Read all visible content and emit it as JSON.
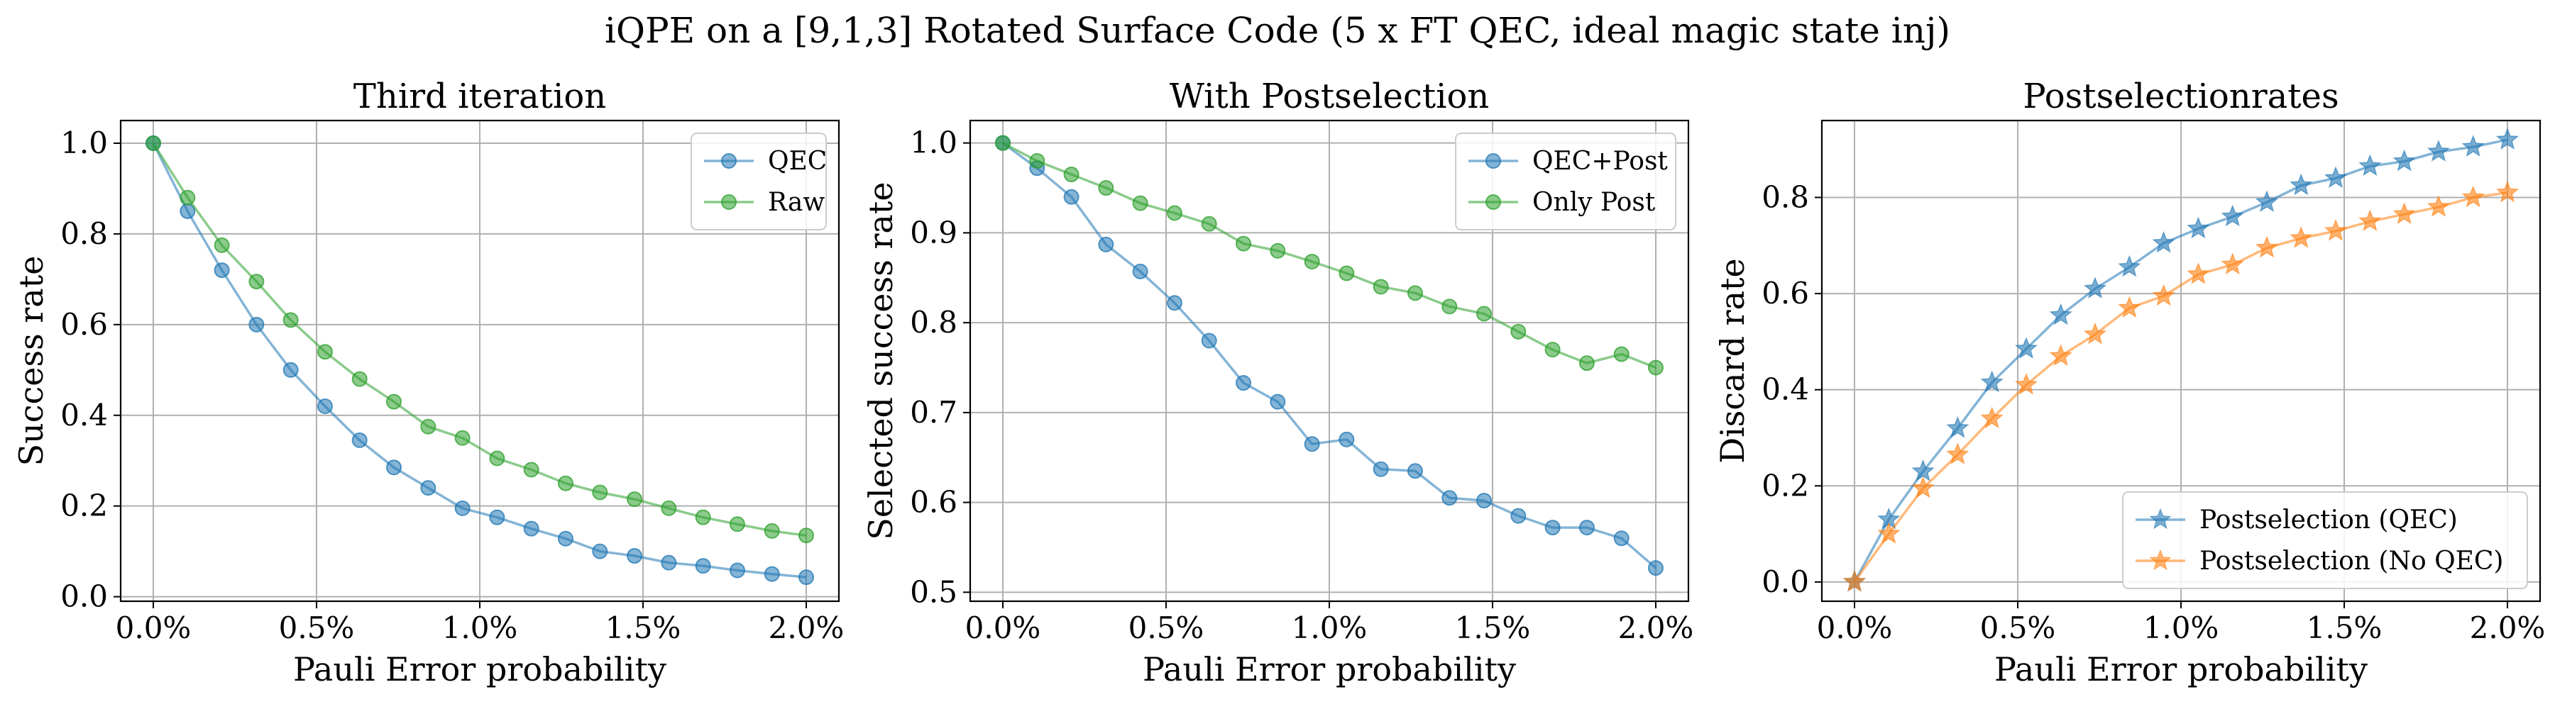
{
  "figure_title": "iQPE on a [9,1,3] Rotated Surface Code (5 x FT QEC, ideal magic state inj)",
  "chart_data": [
    {
      "type": "line",
      "title": "Third iteration",
      "xlabel": "Pauli Error probability",
      "ylabel": "Success rate",
      "xlim": [
        -0.001,
        0.021
      ],
      "ylim": [
        -0.01,
        1.05
      ],
      "xticks": [
        0,
        0.005,
        0.01,
        0.015,
        0.02
      ],
      "xtick_labels": [
        "0.0%",
        "0.5%",
        "1.0%",
        "1.5%",
        "2.0%"
      ],
      "yticks": [
        0,
        0.2,
        0.4,
        0.6,
        0.8,
        1.0
      ],
      "ytick_labels": [
        "0.0",
        "0.2",
        "0.4",
        "0.6",
        "0.8",
        "1.0"
      ],
      "grid": true,
      "legend": "top-right",
      "marker": "circle",
      "x": [
        0,
        0.00105,
        0.0021,
        0.00316,
        0.00421,
        0.00526,
        0.00632,
        0.00737,
        0.00842,
        0.00947,
        0.01053,
        0.01158,
        0.01263,
        0.01368,
        0.01474,
        0.01579,
        0.01684,
        0.01789,
        0.01895,
        0.02
      ],
      "series": [
        {
          "name": "QEC",
          "color": "#1f77b4",
          "values": [
            1.0,
            0.85,
            0.72,
            0.6,
            0.5,
            0.42,
            0.345,
            0.285,
            0.24,
            0.195,
            0.175,
            0.15,
            0.128,
            0.1,
            0.09,
            0.075,
            0.068,
            0.058,
            0.05,
            0.043
          ]
        },
        {
          "name": "Raw",
          "color": "#2ca02c",
          "values": [
            1.0,
            0.88,
            0.775,
            0.695,
            0.61,
            0.54,
            0.48,
            0.43,
            0.375,
            0.35,
            0.305,
            0.28,
            0.25,
            0.23,
            0.215,
            0.195,
            0.175,
            0.16,
            0.145,
            0.135
          ]
        }
      ]
    },
    {
      "type": "line",
      "title": "With Postselection",
      "xlabel": "Pauli Error probability",
      "ylabel": "Selected success rate",
      "xlim": [
        -0.001,
        0.021
      ],
      "ylim": [
        0.49,
        1.025
      ],
      "xticks": [
        0,
        0.005,
        0.01,
        0.015,
        0.02
      ],
      "xtick_labels": [
        "0.0%",
        "0.5%",
        "1.0%",
        "1.5%",
        "2.0%"
      ],
      "yticks": [
        0.5,
        0.6,
        0.7,
        0.8,
        0.9,
        1.0
      ],
      "ytick_labels": [
        "0.5",
        "0.6",
        "0.7",
        "0.8",
        "0.9",
        "1.0"
      ],
      "grid": true,
      "legend": "top-right",
      "marker": "circle",
      "x": [
        0,
        0.00105,
        0.0021,
        0.00316,
        0.00421,
        0.00526,
        0.00632,
        0.00737,
        0.00842,
        0.00947,
        0.01053,
        0.01158,
        0.01263,
        0.01368,
        0.01474,
        0.01579,
        0.01684,
        0.01789,
        0.01895,
        0.02
      ],
      "series": [
        {
          "name": "QEC+Post",
          "color": "#1f77b4",
          "values": [
            1.0,
            0.972,
            0.94,
            0.887,
            0.857,
            0.822,
            0.78,
            0.733,
            0.712,
            0.665,
            0.67,
            0.637,
            0.635,
            0.605,
            0.602,
            0.585,
            0.572,
            0.572,
            0.56,
            0.527
          ]
        },
        {
          "name": "Only Post",
          "color": "#2ca02c",
          "values": [
            1.0,
            0.98,
            0.965,
            0.95,
            0.933,
            0.922,
            0.91,
            0.888,
            0.88,
            0.868,
            0.855,
            0.84,
            0.833,
            0.818,
            0.81,
            0.79,
            0.77,
            0.755,
            0.765,
            0.75
          ]
        }
      ]
    },
    {
      "type": "line",
      "title": "Postselectionrates",
      "xlabel": "Pauli Error probability",
      "ylabel": "Discard rate",
      "xlim": [
        -0.001,
        0.021
      ],
      "ylim": [
        -0.04,
        0.96
      ],
      "xticks": [
        0,
        0.005,
        0.01,
        0.015,
        0.02
      ],
      "xtick_labels": [
        "0.0%",
        "0.5%",
        "1.0%",
        "1.5%",
        "2.0%"
      ],
      "yticks": [
        0,
        0.2,
        0.4,
        0.6,
        0.8
      ],
      "ytick_labels": [
        "0.0",
        "0.2",
        "0.4",
        "0.6",
        "0.8"
      ],
      "grid": true,
      "legend": "bottom-right",
      "marker": "star",
      "x": [
        0,
        0.00105,
        0.0021,
        0.00316,
        0.00421,
        0.00526,
        0.00632,
        0.00737,
        0.00842,
        0.00947,
        0.01053,
        0.01158,
        0.01263,
        0.01368,
        0.01474,
        0.01579,
        0.01684,
        0.01789,
        0.01895,
        0.02
      ],
      "series": [
        {
          "name": "Postselection (QEC)",
          "color": "#1f77b4",
          "values": [
            0.0,
            0.13,
            0.23,
            0.32,
            0.415,
            0.485,
            0.555,
            0.61,
            0.655,
            0.705,
            0.735,
            0.76,
            0.79,
            0.825,
            0.84,
            0.865,
            0.875,
            0.895,
            0.905,
            0.92
          ]
        },
        {
          "name": "Postselection (No QEC)",
          "color": "#ff7f0e",
          "values": [
            0.0,
            0.1,
            0.195,
            0.265,
            0.34,
            0.41,
            0.47,
            0.515,
            0.57,
            0.595,
            0.64,
            0.66,
            0.695,
            0.715,
            0.73,
            0.75,
            0.765,
            0.78,
            0.8,
            0.81
          ]
        }
      ]
    }
  ]
}
